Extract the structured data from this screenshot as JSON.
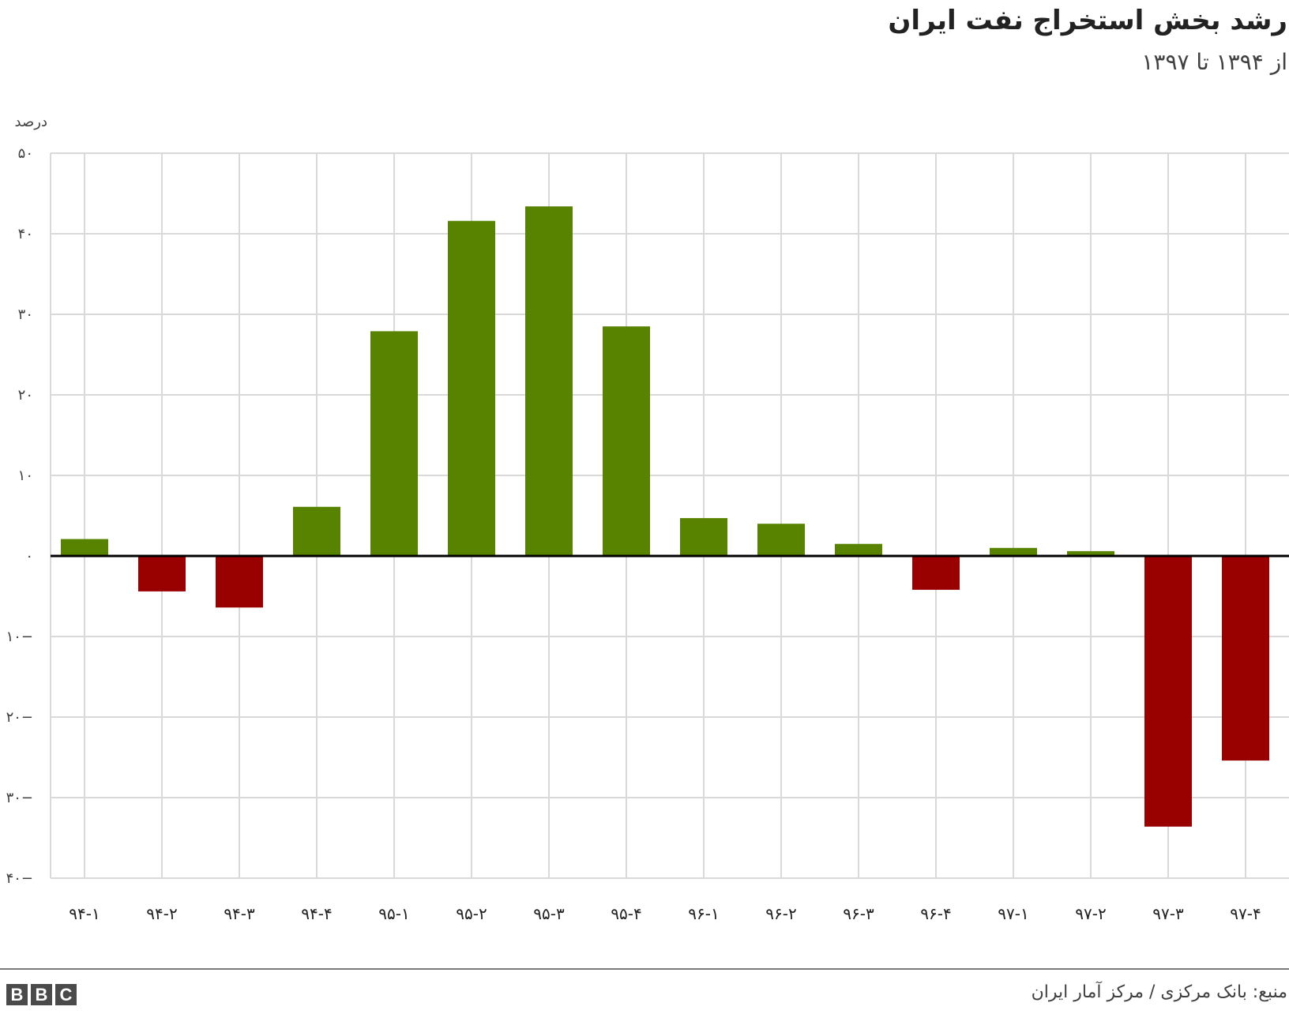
{
  "title": "رشد بخش استخراج نفت ایران",
  "subtitle": "از ۱۳۹۴ تا ۱۳۹۷",
  "source": "منبع: بانک مرکزی / مرکز آمار ایران",
  "logo": "BBC",
  "colors": {
    "positive": "#588300",
    "negative": "#990000",
    "grid": "#d9d9d9",
    "zero_line": "#000000"
  },
  "chart_data": {
    "type": "bar",
    "title": "رشد بخش استخراج نفت ایران",
    "subtitle": "از ۱۳۹۴ تا ۱۳۹۷",
    "ylabel": "درصد",
    "xlabel": "",
    "ylim": [
      -40,
      50
    ],
    "yticks": [
      50,
      40,
      30,
      20,
      10,
      0,
      -10,
      -20,
      -30,
      -40
    ],
    "ytick_labels": [
      "۵۰",
      "۴۰",
      "۳۰",
      "۲۰",
      "۱۰",
      "۰",
      "۱۰−",
      "۲۰−",
      "۳۰−",
      "۴۰−"
    ],
    "grid": true,
    "categories": [
      "۹۴-۱",
      "۹۴-۲",
      "۹۴-۳",
      "۹۴-۴",
      "۹۵-۱",
      "۹۵-۲",
      "۹۵-۳",
      "۹۵-۴",
      "۹۶-۱",
      "۹۶-۲",
      "۹۶-۳",
      "۹۶-۴",
      "۹۷-۱",
      "۹۷-۲",
      "۹۷-۳",
      "۹۷-۴"
    ],
    "values": [
      2.1,
      -4.4,
      -6.4,
      6.1,
      27.9,
      41.6,
      43.4,
      28.5,
      4.7,
      4.0,
      1.5,
      -4.2,
      1.0,
      0.6,
      -33.6,
      -25.4
    ]
  }
}
